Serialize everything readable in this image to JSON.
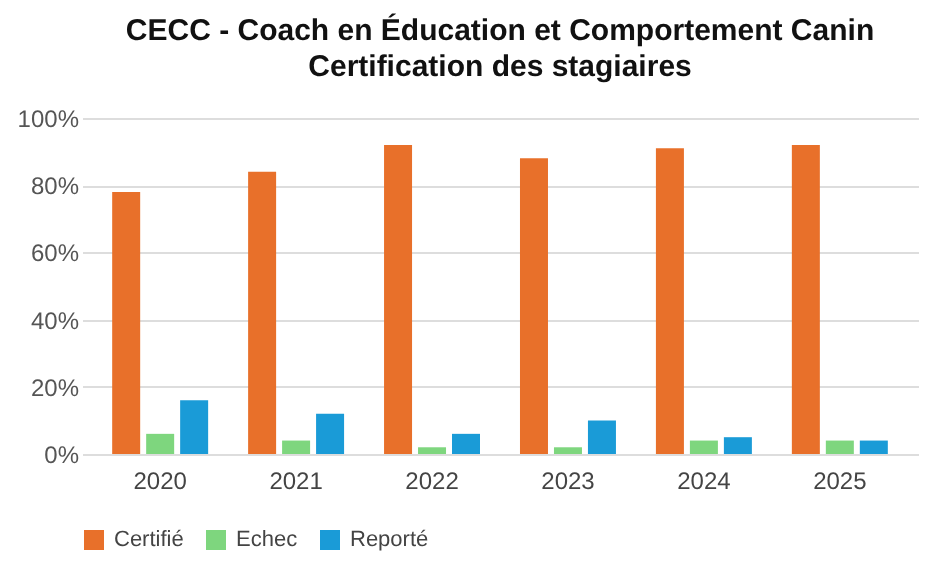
{
  "chart_data": {
    "type": "bar",
    "title": "CECC - Coach en Éducation et Comportement Canin",
    "subtitle": "Certification des stagiaires",
    "categories": [
      "2020",
      "2021",
      "2022",
      "2023",
      "2024",
      "2025"
    ],
    "series": [
      {
        "name": "Certifié",
        "color": "#e8702a",
        "values": [
          78,
          84,
          92,
          88,
          91,
          92
        ]
      },
      {
        "name": "Echec",
        "color": "#7ed67e",
        "values": [
          6,
          4,
          2,
          2,
          4,
          4
        ]
      },
      {
        "name": "Reporté",
        "color": "#1a9bd7",
        "values": [
          16,
          12,
          6,
          10,
          5,
          4
        ]
      }
    ],
    "ylim": [
      0,
      100
    ],
    "yticks": [
      {
        "value": 0,
        "label": "0%"
      },
      {
        "value": 20,
        "label": "20%"
      },
      {
        "value": 40,
        "label": "40%"
      },
      {
        "value": 60,
        "label": "60%"
      },
      {
        "value": 80,
        "label": "80%"
      },
      {
        "value": 100,
        "label": "100%"
      }
    ],
    "grid": "y",
    "legend": "bottom"
  }
}
